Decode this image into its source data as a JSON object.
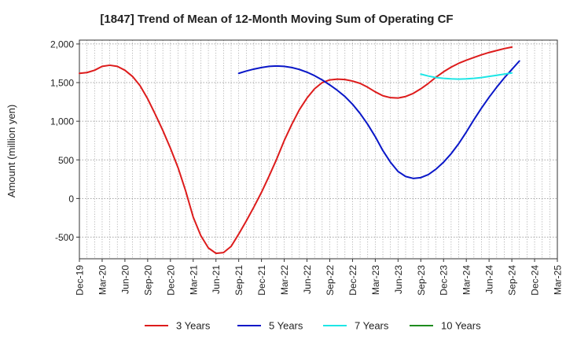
{
  "chart_data": {
    "type": "line",
    "title": "[1847]  Trend of Mean of 12-Month Moving Sum of Operating CF",
    "xlabel": "",
    "ylabel": "Amount (million yen)",
    "ylim": [
      -780,
      2050
    ],
    "yticks": [
      2000,
      1500,
      1000,
      500,
      0,
      -500
    ],
    "ytick_labels": [
      "2,000",
      "1,500",
      "1,000",
      "500",
      "0",
      "-500"
    ],
    "x_tick_labels": [
      "Dec-19",
      "Mar-20",
      "Jun-20",
      "Sep-20",
      "Dec-20",
      "Mar-21",
      "Jun-21",
      "Sep-21",
      "Dec-21",
      "Mar-22",
      "Jun-22",
      "Sep-22",
      "Dec-22",
      "Mar-23",
      "Jun-23",
      "Sep-23",
      "Dec-23",
      "Mar-24",
      "Jun-24",
      "Sep-24",
      "Dec-24",
      "Mar-25"
    ],
    "grid": true,
    "legend_position": "bottom",
    "series": [
      {
        "name": "3 Years",
        "color": "#dd1c1c",
        "start_month": 0,
        "values": [
          1620,
          1630,
          1660,
          1710,
          1725,
          1710,
          1660,
          1580,
          1460,
          1290,
          1090,
          880,
          650,
          400,
          100,
          -240,
          -480,
          -640,
          -710,
          -700,
          -620,
          -460,
          -290,
          -110,
          80,
          290,
          510,
          750,
          960,
          1150,
          1300,
          1420,
          1500,
          1535,
          1545,
          1540,
          1520,
          1490,
          1440,
          1380,
          1330,
          1305,
          1300,
          1320,
          1360,
          1420,
          1490,
          1570,
          1640,
          1700,
          1750,
          1790,
          1825,
          1860,
          1890,
          1915,
          1940,
          1960
        ]
      },
      {
        "name": "5 Years",
        "color": "#0a17c8",
        "start_month": 21,
        "values": [
          1620,
          1650,
          1675,
          1695,
          1710,
          1715,
          1710,
          1695,
          1670,
          1635,
          1590,
          1535,
          1470,
          1400,
          1320,
          1220,
          1100,
          960,
          800,
          620,
          470,
          350,
          285,
          260,
          270,
          310,
          380,
          470,
          580,
          710,
          860,
          1020,
          1170,
          1310,
          1440,
          1560,
          1670,
          1780
        ]
      },
      {
        "name": "7 Years",
        "color": "#1ee6e6",
        "start_month": 45,
        "values": [
          1610,
          1585,
          1565,
          1555,
          1548,
          1545,
          1548,
          1555,
          1565,
          1580,
          1595,
          1610,
          1625
        ]
      },
      {
        "name": "10 Years",
        "color": "#1e8c1e",
        "start_month": 0,
        "values": []
      }
    ]
  }
}
